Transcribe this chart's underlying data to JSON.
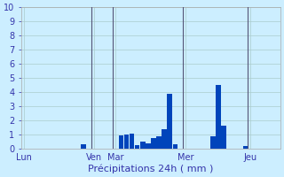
{
  "xlabel": "Précipitations 24h ( mm )",
  "ylim": [
    0,
    10
  ],
  "yticks": [
    0,
    1,
    2,
    3,
    4,
    5,
    6,
    7,
    8,
    9,
    10
  ],
  "background_color": "#cceeff",
  "bar_color": "#0044bb",
  "grid_color": "#aacccc",
  "vline_color": "#555577",
  "tick_color": "#3333aa",
  "xlabel_color": "#3333aa",
  "num_bars": 48,
  "bar_values": [
    0,
    0,
    0,
    0,
    0,
    0,
    0,
    0,
    0,
    0,
    0,
    0.3,
    0,
    0,
    0,
    0,
    0,
    0,
    0.9,
    1.0,
    1.05,
    0.25,
    0.5,
    0.35,
    0.75,
    0.85,
    1.35,
    3.85,
    0.3,
    0,
    0,
    0,
    0,
    0,
    0,
    0.85,
    4.5,
    1.6,
    0,
    0,
    0,
    0.2,
    0,
    0,
    0,
    0,
    0,
    0
  ],
  "day_labels": [
    "Lun",
    "Ven",
    "Mar",
    "Mer",
    "Jeu"
  ],
  "day_x_positions": [
    0,
    13,
    17,
    30,
    42
  ],
  "vline_positions": [
    13,
    17,
    30,
    42
  ]
}
